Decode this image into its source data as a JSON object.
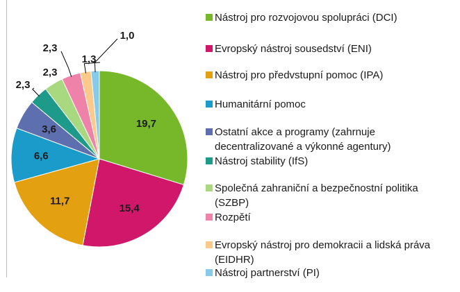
{
  "chart_data": {
    "type": "pie",
    "categories": [
      "Nástroj pro rozvojovou spolupráci (DCI)",
      "Evropský nástroj sousedství (ENI)",
      "Nástroj pro předvstupní pomoc (IPA)",
      "Humanitární pomoc",
      "Ostatní akce a programy (zahrnuje decentralizované a výkonné agentury)",
      "Nástroj stability (IfS)",
      "Společná zahraniční a bezpečnostní politika (SZBP)",
      "Rozpětí",
      "Evropský nástroj pro demokracii a lidská práva (EIDHR)",
      "Nástroj partnerství (PI)"
    ],
    "values": [
      19.7,
      15.4,
      11.7,
      6.6,
      3.6,
      2.3,
      2.3,
      2.3,
      1.3,
      1.0
    ],
    "value_labels": [
      "19,7",
      "15,4",
      "11,7",
      "6,6",
      "3,6",
      "2,3",
      "2,3",
      "2,3",
      "1,3",
      "1,0"
    ],
    "colors": [
      "#76b82a",
      "#d0176a",
      "#e3a010",
      "#1a9bc9",
      "#5d6fae",
      "#1e9a8a",
      "#a8d87f",
      "#ee82a8",
      "#fbc98a",
      "#86cbea"
    ],
    "legend": "right"
  }
}
